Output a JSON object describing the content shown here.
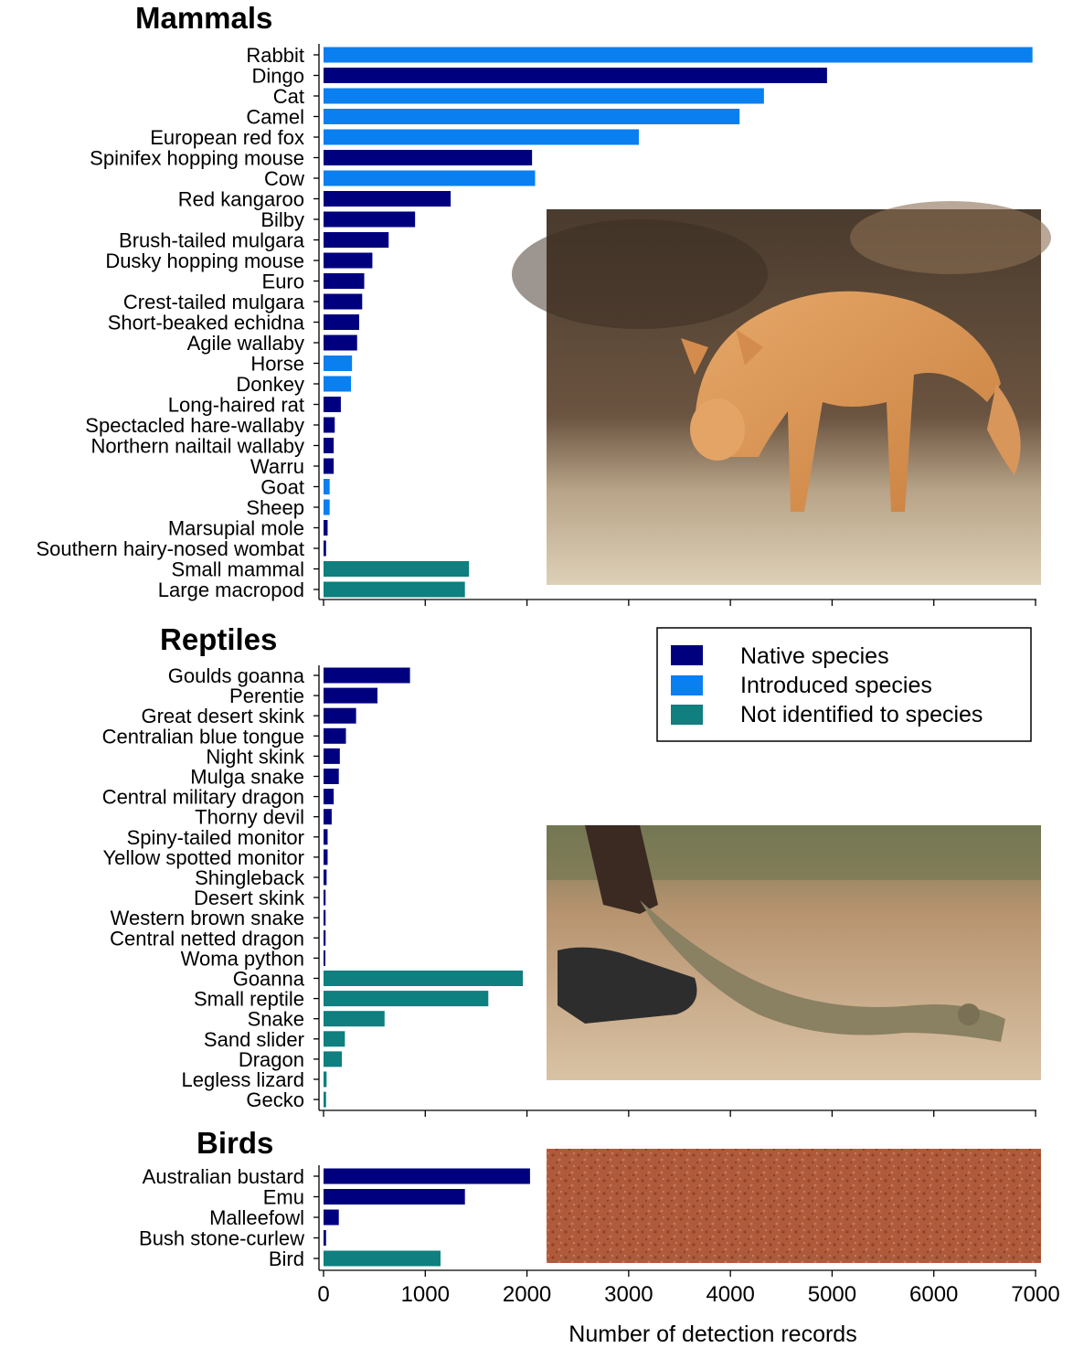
{
  "colors": {
    "native": "#00007f",
    "introduced": "#0a7ff0",
    "unidentified": "#0f7f7f"
  },
  "legend": {
    "native": "Native species",
    "introduced": "Introduced species",
    "unidentified": "Not identified to species"
  },
  "photos": {
    "mammals": "dingo-photo",
    "reptiles": "goanna-photo",
    "birds": "red-sand-ground-photo"
  },
  "chart_data": {
    "type": "bar",
    "orientation": "horizontal",
    "xlabel": "Number of detection records",
    "xlim": [
      0,
      7000
    ],
    "xticks": [
      0,
      1000,
      2000,
      3000,
      4000,
      5000,
      6000,
      7000
    ],
    "panels": [
      {
        "title": "Mammals",
        "bars": [
          {
            "label": "Rabbit",
            "value": 6970,
            "group": "introduced"
          },
          {
            "label": "Dingo",
            "value": 4950,
            "group": "native"
          },
          {
            "label": "Cat",
            "value": 4330,
            "group": "introduced"
          },
          {
            "label": "Camel",
            "value": 4090,
            "group": "introduced"
          },
          {
            "label": "European red fox",
            "value": 3100,
            "group": "introduced"
          },
          {
            "label": "Spinifex hopping mouse",
            "value": 2050,
            "group": "native"
          },
          {
            "label": "Cow",
            "value": 2080,
            "group": "introduced"
          },
          {
            "label": "Red kangaroo",
            "value": 1250,
            "group": "native"
          },
          {
            "label": "Bilby",
            "value": 900,
            "group": "native"
          },
          {
            "label": "Brush-tailed mulgara",
            "value": 640,
            "group": "native"
          },
          {
            "label": "Dusky hopping mouse",
            "value": 480,
            "group": "native"
          },
          {
            "label": "Euro",
            "value": 400,
            "group": "native"
          },
          {
            "label": "Crest-tailed mulgara",
            "value": 380,
            "group": "native"
          },
          {
            "label": "Short-beaked echidna",
            "value": 350,
            "group": "native"
          },
          {
            "label": "Agile wallaby",
            "value": 330,
            "group": "native"
          },
          {
            "label": "Horse",
            "value": 280,
            "group": "introduced"
          },
          {
            "label": "Donkey",
            "value": 270,
            "group": "introduced"
          },
          {
            "label": "Long-haired rat",
            "value": 170,
            "group": "native"
          },
          {
            "label": "Spectacled hare-wallaby",
            "value": 110,
            "group": "native"
          },
          {
            "label": "Northern nailtail wallaby",
            "value": 100,
            "group": "native"
          },
          {
            "label": "Warru",
            "value": 100,
            "group": "native"
          },
          {
            "label": "Goat",
            "value": 60,
            "group": "introduced"
          },
          {
            "label": "Sheep",
            "value": 60,
            "group": "introduced"
          },
          {
            "label": "Marsupial mole",
            "value": 40,
            "group": "native"
          },
          {
            "label": "Southern hairy-nosed wombat",
            "value": 25,
            "group": "native"
          },
          {
            "label": "Small mammal",
            "value": 1430,
            "group": "unidentified"
          },
          {
            "label": "Large macropod",
            "value": 1390,
            "group": "unidentified"
          }
        ]
      },
      {
        "title": "Reptiles",
        "bars": [
          {
            "label": "Goulds goanna",
            "value": 850,
            "group": "native"
          },
          {
            "label": "Perentie",
            "value": 530,
            "group": "native"
          },
          {
            "label": "Great desert skink",
            "value": 320,
            "group": "native"
          },
          {
            "label": "Centralian blue tongue",
            "value": 220,
            "group": "native"
          },
          {
            "label": "Night skink",
            "value": 160,
            "group": "native"
          },
          {
            "label": "Mulga snake",
            "value": 150,
            "group": "native"
          },
          {
            "label": "Central military dragon",
            "value": 100,
            "group": "native"
          },
          {
            "label": "Thorny devil",
            "value": 80,
            "group": "native"
          },
          {
            "label": "Spiny-tailed monitor",
            "value": 40,
            "group": "native"
          },
          {
            "label": "Yellow spotted monitor",
            "value": 40,
            "group": "native"
          },
          {
            "label": "Shingleback",
            "value": 30,
            "group": "native"
          },
          {
            "label": "Desert skink",
            "value": 20,
            "group": "native"
          },
          {
            "label": "Western brown snake",
            "value": 20,
            "group": "native"
          },
          {
            "label": "Central netted dragon",
            "value": 20,
            "group": "native"
          },
          {
            "label": "Woma python",
            "value": 15,
            "group": "native"
          },
          {
            "label": "Goanna",
            "value": 1960,
            "group": "unidentified"
          },
          {
            "label": "Small reptile",
            "value": 1620,
            "group": "unidentified"
          },
          {
            "label": "Snake",
            "value": 600,
            "group": "unidentified"
          },
          {
            "label": "Sand slider",
            "value": 210,
            "group": "unidentified"
          },
          {
            "label": "Dragon",
            "value": 180,
            "group": "unidentified"
          },
          {
            "label": "Legless lizard",
            "value": 30,
            "group": "unidentified"
          },
          {
            "label": "Gecko",
            "value": 25,
            "group": "unidentified"
          }
        ]
      },
      {
        "title": "Birds",
        "bars": [
          {
            "label": "Australian bustard",
            "value": 2030,
            "group": "native"
          },
          {
            "label": "Emu",
            "value": 1390,
            "group": "native"
          },
          {
            "label": "Malleefowl",
            "value": 150,
            "group": "native"
          },
          {
            "label": "Bush stone-curlew",
            "value": 25,
            "group": "native"
          },
          {
            "label": "Bird",
            "value": 1150,
            "group": "unidentified"
          }
        ]
      }
    ]
  }
}
